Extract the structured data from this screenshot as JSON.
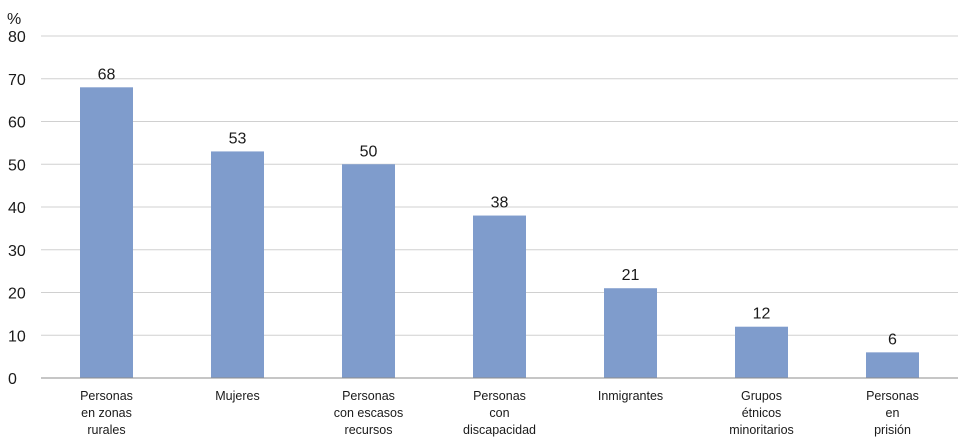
{
  "chart_data": {
    "type": "bar",
    "title": "",
    "xlabel": "",
    "ylabel": "%",
    "ylim": [
      0,
      80
    ],
    "yticks": [
      0,
      10,
      20,
      30,
      40,
      50,
      60,
      70,
      80
    ],
    "grid": true,
    "categories": [
      [
        "Personas",
        "en zonas",
        "rurales"
      ],
      [
        "Mujeres"
      ],
      [
        "Personas",
        "con escasos",
        "recursos"
      ],
      [
        "Personas",
        "con",
        "discapacidad"
      ],
      [
        "Inmigrantes"
      ],
      [
        "Grupos",
        "étnicos",
        "minoritarios"
      ],
      [
        "Personas",
        "en",
        "prisión"
      ]
    ],
    "values": [
      68,
      53,
      50,
      38,
      21,
      12,
      6
    ],
    "data_labels": [
      "68",
      "53",
      "50",
      "38",
      "21",
      "12",
      "6"
    ],
    "bar_color": "#7f9ccc"
  }
}
